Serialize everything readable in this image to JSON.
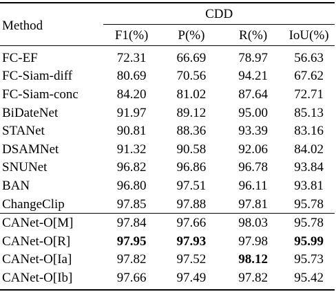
{
  "table": {
    "method_header": "Method",
    "group_header": "CDD",
    "columns": [
      "F1(%)",
      "P(%)",
      "R(%)",
      "IoU(%)"
    ],
    "baseline_rows": [
      {
        "method": "FC-EF",
        "f1": "72.31",
        "p": "66.69",
        "r": "78.97",
        "iou": "56.63"
      },
      {
        "method": "FC-Siam-diff",
        "f1": "80.69",
        "p": "70.56",
        "r": "94.21",
        "iou": "67.62"
      },
      {
        "method": "FC-Siam-conc",
        "f1": "84.20",
        "p": "81.02",
        "r": "87.64",
        "iou": "72.71"
      },
      {
        "method": "BiDateNet",
        "f1": "91.97",
        "p": "89.12",
        "r": "95.00",
        "iou": "85.13"
      },
      {
        "method": "STANet",
        "f1": "90.81",
        "p": "88.36",
        "r": "93.39",
        "iou": "83.16"
      },
      {
        "method": "DSAMNet",
        "f1": "91.32",
        "p": "90.58",
        "r": "92.06",
        "iou": "84.02"
      },
      {
        "method": "SNUNet",
        "f1": "96.82",
        "p": "96.86",
        "r": "96.78",
        "iou": "93.84"
      },
      {
        "method": "BAN",
        "f1": "96.80",
        "p": "97.51",
        "r": "96.11",
        "iou": "93.81"
      },
      {
        "method": "ChangeClip",
        "f1": "97.85",
        "p": "97.88",
        "r": "97.81",
        "iou": "95.78"
      }
    ],
    "ours_rows": [
      {
        "method": "CANet-O[M]",
        "f1": "97.84",
        "p": "97.66",
        "r": "98.03",
        "iou": "95.78"
      },
      {
        "method": "CANet-O[R]",
        "f1": "97.95",
        "p": "97.93",
        "r": "97.98",
        "iou": "95.99"
      },
      {
        "method": "CANet-O[Ia]",
        "f1": "97.82",
        "p": "97.52",
        "r": "98.12",
        "iou": "95.73"
      },
      {
        "method": "CANet-O[Ib]",
        "f1": "97.66",
        "p": "97.49",
        "r": "97.82",
        "iou": "95.42"
      }
    ]
  }
}
